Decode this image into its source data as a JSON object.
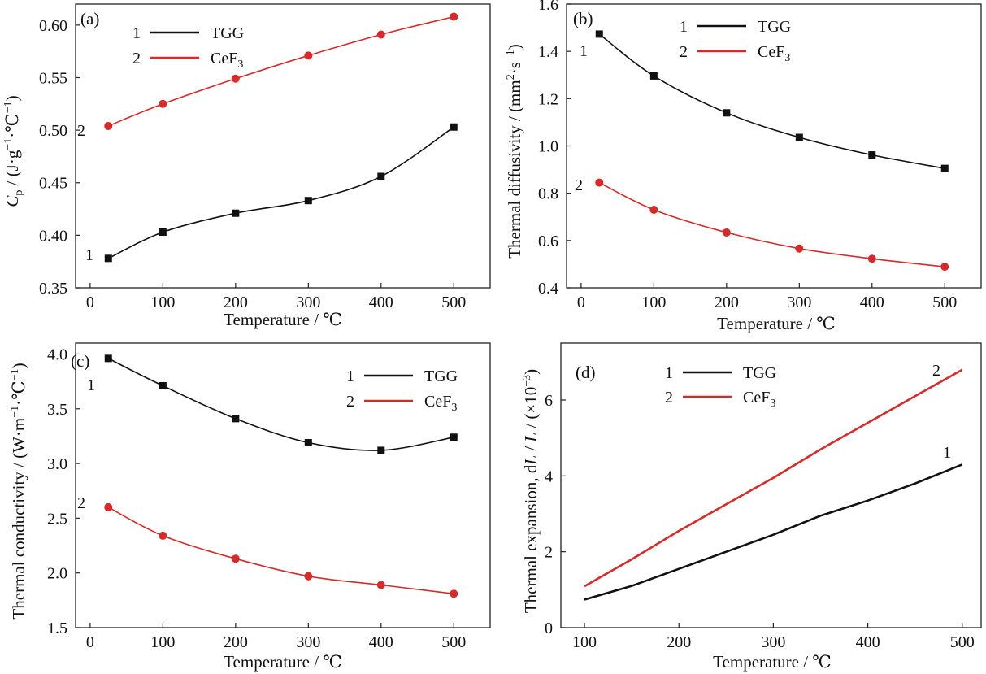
{
  "chart_data": [
    {
      "panel": "(a)",
      "type": "line",
      "xlabel": "Temperature / ℃",
      "ylabel": "C_p / (J·g⁻¹·℃⁻¹)",
      "ylabel_parts": [
        "C",
        "p",
        " / (J·g",
        "−1",
        "·℃",
        "−1",
        ")"
      ],
      "xlim": [
        -20,
        550
      ],
      "ylim": [
        0.35,
        0.62
      ],
      "xticks": [
        0,
        100,
        200,
        300,
        400,
        500
      ],
      "yticks": [
        0.35,
        0.4,
        0.45,
        0.5,
        0.55,
        0.6
      ],
      "ytick_labels": [
        "0.35",
        "0.40",
        "0.45",
        "0.50",
        "0.55",
        "0.60"
      ],
      "legend": {
        "placement": "top-left"
      },
      "series": [
        {
          "id": "1",
          "name": "TGG",
          "color": "#111111",
          "marker": "square",
          "x": [
            25,
            100,
            200,
            300,
            400,
            500
          ],
          "y": [
            0.378,
            0.403,
            0.421,
            0.433,
            0.456,
            0.503
          ]
        },
        {
          "id": "2",
          "name": "CeF",
          "name_sub": "3",
          "color": "#d42b2b",
          "marker": "circle",
          "x": [
            25,
            100,
            200,
            300,
            400,
            500
          ],
          "y": [
            0.504,
            0.525,
            0.549,
            0.571,
            0.591,
            0.608
          ]
        }
      ]
    },
    {
      "panel": "(b)",
      "type": "line",
      "xlabel": "Temperature / ℃",
      "ylabel": "Thermal diffusivity / (mm²·s⁻¹)",
      "ylabel_parts": [
        "Thermal diffusivity / (mm",
        "2",
        "·s",
        "−1",
        ")"
      ],
      "xlim": [
        -20,
        550
      ],
      "ylim": [
        0.4,
        1.6
      ],
      "xticks": [
        0,
        100,
        200,
        300,
        400,
        500
      ],
      "yticks": [
        0.4,
        0.6,
        0.8,
        1.0,
        1.2,
        1.4,
        1.6
      ],
      "ytick_labels": [
        "0.4",
        "0.6",
        "0.8",
        "1.0",
        "1.2",
        "1.4",
        "1.6"
      ],
      "legend": {
        "placement": "top-right"
      },
      "series": [
        {
          "id": "1",
          "name": "TGG",
          "color": "#111111",
          "marker": "square",
          "x": [
            25,
            100,
            200,
            300,
            400,
            500
          ],
          "y": [
            1.473,
            1.296,
            1.14,
            1.036,
            0.962,
            0.905
          ]
        },
        {
          "id": "2",
          "name": "CeF",
          "name_sub": "3",
          "color": "#d42b2b",
          "marker": "circle",
          "x": [
            25,
            100,
            200,
            300,
            400,
            500
          ],
          "y": [
            0.845,
            0.73,
            0.634,
            0.566,
            0.523,
            0.489
          ]
        }
      ]
    },
    {
      "panel": "(c)",
      "type": "line",
      "xlabel": "Temperature / ℃",
      "ylabel": "Thermal conductivity / (W·m⁻¹·℃⁻¹)",
      "ylabel_parts": [
        "Thermal conductivity / (W·m",
        "−1",
        "·℃",
        "−1",
        ")"
      ],
      "xlim": [
        -20,
        550
      ],
      "ylim": [
        1.5,
        4.1
      ],
      "xticks": [
        0,
        100,
        200,
        300,
        400,
        500
      ],
      "yticks": [
        1.5,
        2.0,
        2.5,
        3.0,
        3.5,
        4.0
      ],
      "ytick_labels": [
        "1.5",
        "2.0",
        "2.5",
        "3.0",
        "3.5",
        "4.0"
      ],
      "legend": {
        "placement": "top-right"
      },
      "series": [
        {
          "id": "1",
          "name": "TGG",
          "color": "#111111",
          "marker": "square",
          "x": [
            25,
            100,
            200,
            300,
            400,
            500
          ],
          "y": [
            3.96,
            3.71,
            3.41,
            3.19,
            3.12,
            3.24
          ]
        },
        {
          "id": "2",
          "name": "CeF",
          "name_sub": "3",
          "color": "#d42b2b",
          "marker": "circle",
          "x": [
            25,
            100,
            200,
            300,
            400,
            500
          ],
          "y": [
            2.6,
            2.34,
            2.13,
            1.97,
            1.89,
            1.81
          ]
        }
      ]
    },
    {
      "panel": "(d)",
      "type": "line",
      "xlabel": "Temperature / ℃",
      "ylabel": "Thermal expansion, dL / L / (×10⁻³)",
      "ylabel_parts": [
        "Thermal expansion, d",
        "L",
        " / ",
        "L",
        " / (×10",
        "−3",
        ")"
      ],
      "xlim": [
        75,
        520
      ],
      "ylim": [
        0,
        7.5
      ],
      "xticks": [
        100,
        200,
        300,
        400,
        500
      ],
      "yticks": [
        0,
        2,
        4,
        6
      ],
      "ytick_labels": [
        "0",
        "2",
        "4",
        "6"
      ],
      "legend": {
        "placement": "top-left"
      },
      "series": [
        {
          "id": "1",
          "name": "TGG",
          "color": "#111111",
          "marker": "none",
          "x": [
            100,
            150,
            200,
            250,
            300,
            350,
            400,
            450,
            500
          ],
          "y": [
            0.74,
            1.1,
            1.55,
            2.0,
            2.45,
            2.95,
            3.35,
            3.8,
            4.3
          ]
        },
        {
          "id": "2",
          "name": "CeF",
          "name_sub": "3",
          "color": "#d42b2b",
          "marker": "none",
          "x": [
            100,
            150,
            200,
            250,
            300,
            350,
            400,
            450,
            500
          ],
          "y": [
            1.09,
            1.8,
            2.55,
            3.25,
            3.95,
            4.7,
            5.4,
            6.1,
            6.8
          ]
        }
      ]
    }
  ]
}
